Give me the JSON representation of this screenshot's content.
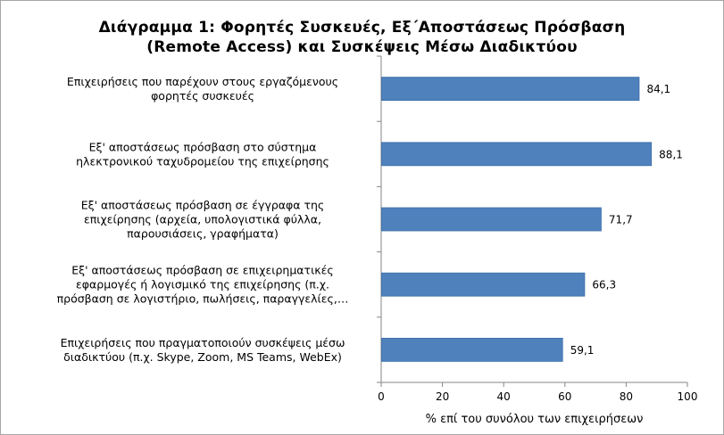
{
  "chart_data": {
    "type": "bar",
    "orientation": "horizontal",
    "title_lines": [
      "Διάγραμμα 1: Φορητές Συσκευές, Εξ΄Αποστάσεως Πρόσβαση",
      "(Remote Access) και Συσκέψεις Μέσω Διαδικτύου"
    ],
    "categories": [
      [
        "Επιχειρήσεις που παρέχουν στους εργαζόμενους",
        "φορητές συσκευές"
      ],
      [
        "Εξ' αποστάσεως πρόσβαση στο σύστημα",
        "ηλεκτρονικού ταχυδρομείου της επιχείρησης"
      ],
      [
        "Εξ' αποστάσεως πρόσβαση σε έγγραφα της",
        "επιχείρησης  (αρχεία, υπολογιστικά φύλλα,",
        "παρουσιάσεις, γραφήματα)"
      ],
      [
        "Εξ' αποστάσεως πρόσβαση σε επιχειρηματικές",
        "εφαρμογές ή λογισμικό της επιχείρησης (π.χ.",
        "πρόσβαση σε λογιστήριο, πωλήσεις, παραγγελίες,…"
      ],
      [
        "Επιχειρήσεις που πραγματοποιούν συσκέψεις μέσω",
        "διαδικτύου (π.χ. Skype, Zoom, MS Teams, WebEx)"
      ]
    ],
    "values": [
      84.1,
      88.1,
      71.7,
      66.3,
      59.1
    ],
    "value_labels": [
      "84,1",
      "88,1",
      "71,7",
      "66,3",
      "59,1"
    ],
    "xlim": [
      0,
      100
    ],
    "xticks": [
      0,
      20,
      40,
      60,
      80,
      100
    ],
    "xlabel": "% επί του συνόλου των επιχειρήσεων",
    "ylabel": "",
    "grid": false,
    "legend": "none",
    "bar_color": "#4f81bd",
    "bar_edge_color": "#3a6ea8"
  }
}
